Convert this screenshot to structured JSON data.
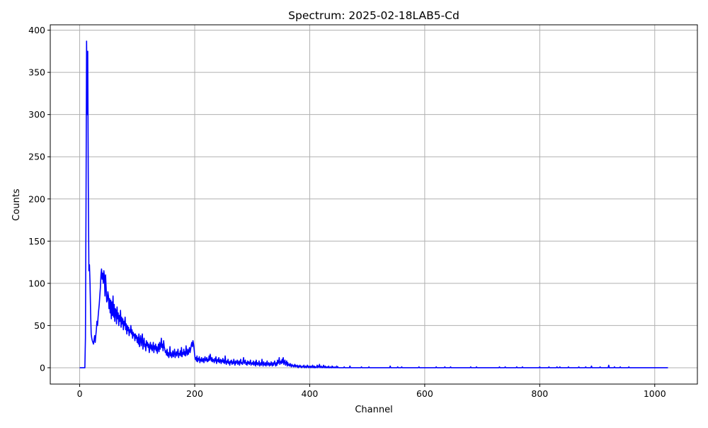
{
  "chart_data": {
    "type": "line",
    "title": "Spectrum: 2025-02-18LAB5-Cd",
    "xlabel": "Channel",
    "ylabel": "Counts",
    "xlim": [
      -51.15,
      1074.15
    ],
    "ylim": [
      -19.35,
      406.35
    ],
    "xticks": [
      0,
      200,
      400,
      600,
      800,
      1000
    ],
    "yticks": [
      0,
      50,
      100,
      150,
      200,
      250,
      300,
      350,
      400
    ],
    "grid": true,
    "line_color": "#0000ff",
    "grid_color": "#b0b0b0",
    "channel_range": [
      0,
      1023
    ],
    "counts_channels_0_449": [
      0,
      0,
      0,
      0,
      0,
      0,
      0,
      0,
      0,
      0,
      35,
      190,
      387,
      300,
      375,
      215,
      115,
      122,
      100,
      65,
      40,
      35,
      32,
      30,
      28,
      33,
      38,
      30,
      38,
      45,
      55,
      50,
      60,
      68,
      75,
      85,
      95,
      110,
      117,
      105,
      112,
      100,
      115,
      108,
      85,
      110,
      95,
      78,
      80,
      90,
      85,
      70,
      82,
      65,
      80,
      58,
      78,
      62,
      85,
      60,
      75,
      55,
      70,
      68,
      52,
      72,
      58,
      65,
      50,
      62,
      55,
      68,
      48,
      60,
      52,
      58,
      45,
      55,
      50,
      60,
      45,
      52,
      40,
      50,
      44,
      48,
      38,
      45,
      42,
      50,
      40,
      45,
      35,
      42,
      38,
      40,
      32,
      40,
      35,
      38,
      30,
      36,
      28,
      40,
      25,
      33,
      38,
      26,
      32,
      40,
      22,
      30,
      35,
      25,
      28,
      20,
      32,
      26,
      30,
      24,
      28,
      18,
      25,
      30,
      22,
      27,
      20,
      24,
      30,
      18,
      26,
      22,
      28,
      20,
      25,
      17,
      23,
      28,
      19,
      30,
      22,
      26,
      35,
      24,
      28,
      20,
      32,
      25,
      22,
      18,
      20,
      15,
      22,
      14,
      18,
      12,
      16,
      25,
      14,
      18,
      12,
      15,
      20,
      13,
      17,
      22,
      12,
      16,
      19,
      14,
      18,
      22,
      12,
      17,
      15,
      20,
      14,
      24,
      13,
      18,
      16,
      22,
      15,
      19,
      14,
      26,
      18,
      15,
      22,
      16,
      20,
      24,
      18,
      22,
      27,
      30,
      25,
      32,
      28,
      22,
      15,
      10,
      12,
      8,
      14,
      7,
      11,
      9,
      13,
      6,
      10,
      8,
      12,
      7,
      9,
      11,
      6,
      10,
      13,
      8,
      9,
      12,
      7,
      10,
      8,
      14,
      9,
      16,
      11,
      8,
      12,
      7,
      10,
      9,
      6,
      11,
      8,
      13,
      5,
      9,
      10,
      7,
      12,
      6,
      8,
      10,
      5,
      9,
      7,
      11,
      6,
      9,
      5,
      14,
      7,
      4,
      8,
      6,
      10,
      5,
      7,
      3,
      8,
      6,
      9,
      4,
      7,
      5,
      10,
      6,
      3,
      8,
      5,
      7,
      9,
      4,
      6,
      8,
      3,
      7,
      10,
      5,
      6,
      4,
      8,
      12,
      5,
      7,
      9,
      4,
      6,
      3,
      8,
      5,
      7,
      4,
      6,
      9,
      3,
      5,
      6,
      4,
      8,
      3,
      5,
      7,
      2,
      9,
      4,
      6,
      3,
      5,
      8,
      2,
      4,
      6,
      3,
      10,
      5,
      2,
      7,
      4,
      3,
      6,
      2,
      5,
      8,
      3,
      4,
      6,
      2,
      5,
      3,
      7,
      4,
      2,
      6,
      3,
      5,
      8,
      4,
      2,
      6,
      3,
      9,
      5,
      7,
      12,
      4,
      6,
      8,
      5,
      10,
      6,
      12,
      4,
      7,
      9,
      3,
      5,
      8,
      2,
      6,
      3,
      4,
      2,
      5,
      3,
      1,
      4,
      2,
      3,
      1,
      2,
      4,
      1,
      3,
      2,
      1,
      3,
      0,
      2,
      1,
      3,
      1,
      2,
      0,
      1,
      2,
      1,
      3,
      0,
      1,
      2,
      0,
      1,
      3,
      1,
      0,
      2,
      1,
      0,
      2,
      1,
      0,
      3,
      1,
      0,
      2,
      0,
      1,
      0,
      1,
      3,
      0,
      2,
      1,
      4,
      0,
      1,
      2,
      0,
      1,
      0,
      3,
      1,
      0,
      2,
      0,
      1,
      0,
      1,
      0,
      2,
      0,
      0,
      1,
      0,
      0,
      2,
      0,
      1,
      0,
      0,
      1,
      0,
      0,
      2,
      0,
      1
    ],
    "counts_tail_nonzero": {
      "460": 1,
      "470": 2,
      "490": 1,
      "503": 1,
      "540": 2,
      "553": 1,
      "560": 1,
      "590": 1,
      "620": 1,
      "635": 1,
      "645": 1,
      "680": 1,
      "690": 1,
      "730": 1,
      "740": 1,
      "760": 1,
      "770": 1,
      "800": 1,
      "816": 1,
      "830": 1,
      "835": 1,
      "850": 1,
      "868": 1,
      "880": 1,
      "890": 2,
      "905": 1,
      "920": 3,
      "930": 1,
      "940": 1,
      "955": 1
    }
  }
}
